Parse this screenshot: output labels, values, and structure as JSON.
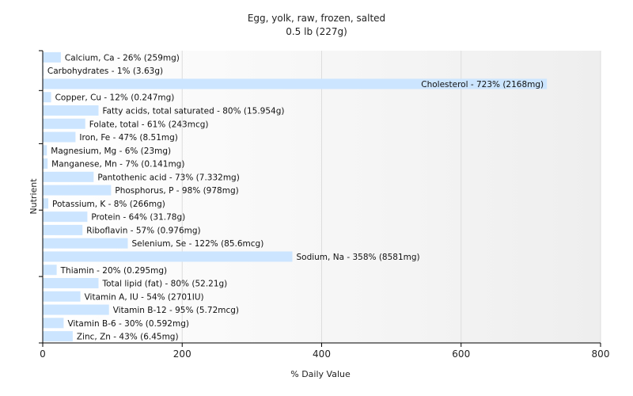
{
  "chart_data": {
    "type": "bar",
    "orientation": "horizontal",
    "title": "Egg, yolk, raw, frozen, salted",
    "subtitle": "0.5 lb (227g)",
    "xlabel": "% Daily Value",
    "ylabel": "Nutrient",
    "xlim": [
      0,
      800
    ],
    "xticks": [
      0,
      200,
      400,
      600,
      800
    ],
    "grid": true,
    "bar_color": "#cce5ff",
    "bars": [
      {
        "label": "Calcium, Ca - 26% (259mg)",
        "value": 26
      },
      {
        "label": "Carbohydrates - 1% (3.63g)",
        "value": 1
      },
      {
        "label": "Cholesterol - 723% (2168mg)",
        "value": 723
      },
      {
        "label": "Copper, Cu - 12% (0.247mg)",
        "value": 12
      },
      {
        "label": "Fatty acids, total saturated - 80% (15.954g)",
        "value": 80
      },
      {
        "label": "Folate, total - 61% (243mcg)",
        "value": 61
      },
      {
        "label": "Iron, Fe - 47% (8.51mg)",
        "value": 47
      },
      {
        "label": "Magnesium, Mg - 6% (23mg)",
        "value": 6
      },
      {
        "label": "Manganese, Mn - 7% (0.141mg)",
        "value": 7
      },
      {
        "label": "Pantothenic acid - 73% (7.332mg)",
        "value": 73
      },
      {
        "label": "Phosphorus, P - 98% (978mg)",
        "value": 98
      },
      {
        "label": "Potassium, K - 8% (266mg)",
        "value": 8
      },
      {
        "label": "Protein - 64% (31.78g)",
        "value": 64
      },
      {
        "label": "Riboflavin - 57% (0.976mg)",
        "value": 57
      },
      {
        "label": "Selenium, Se - 122% (85.6mcg)",
        "value": 122
      },
      {
        "label": "Sodium, Na - 358% (8581mg)",
        "value": 358
      },
      {
        "label": "Thiamin - 20% (0.295mg)",
        "value": 20
      },
      {
        "label": "Total lipid (fat) - 80% (52.21g)",
        "value": 80
      },
      {
        "label": "Vitamin A, IU - 54% (2701IU)",
        "value": 54
      },
      {
        "label": "Vitamin B-12 - 95% (5.72mcg)",
        "value": 95
      },
      {
        "label": "Vitamin B-6 - 30% (0.592mg)",
        "value": 30
      },
      {
        "label": "Zinc, Zn - 43% (6.45mg)",
        "value": 43
      }
    ]
  }
}
